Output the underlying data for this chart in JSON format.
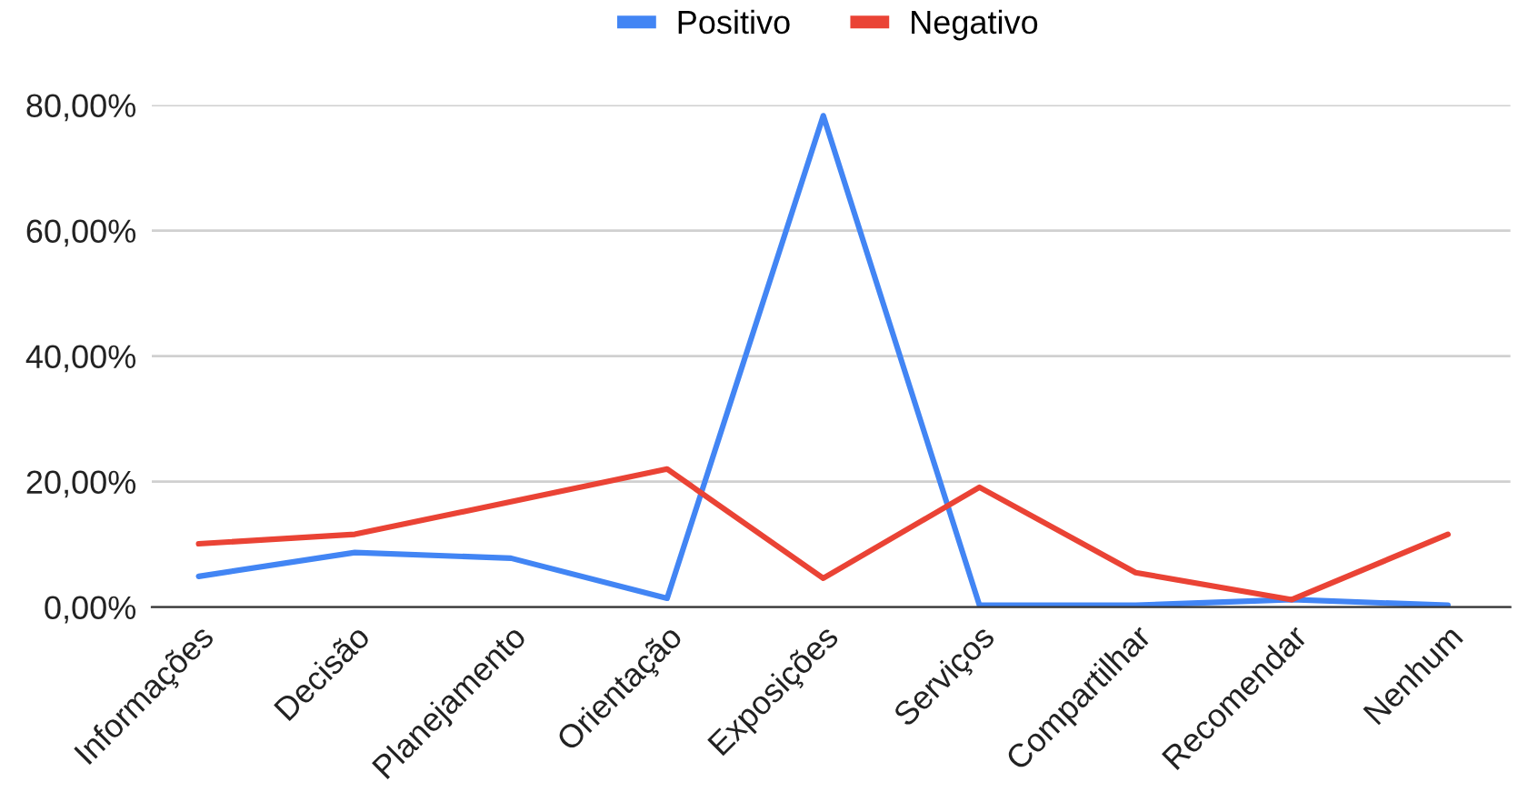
{
  "chart_data": {
    "type": "line",
    "categories": [
      "Informações",
      "Decisão",
      "Planejamento",
      "Orientação",
      "Exposições",
      "Serviços",
      "Compartilhar",
      "Recomendar",
      "Nenhum"
    ],
    "series": [
      {
        "name": "Positivo",
        "color": "#4285f4",
        "values": [
          4.9,
          8.7,
          7.8,
          1.4,
          78.3,
          0.3,
          0.3,
          1.2,
          0.3
        ]
      },
      {
        "name": "Negativo",
        "color": "#ea4335",
        "values": [
          10.1,
          11.6,
          16.8,
          22.0,
          4.6,
          19.1,
          5.5,
          1.2,
          11.6
        ]
      }
    ],
    "ylim": [
      0,
      80
    ],
    "yticks": [
      {
        "value": 0,
        "label": "0,00%"
      },
      {
        "value": 20,
        "label": "20,00%"
      },
      {
        "value": 40,
        "label": "40,00%"
      },
      {
        "value": 60,
        "label": "60,00%"
      },
      {
        "value": 80,
        "label": "80,00%"
      }
    ],
    "grid": "y",
    "legend": "top",
    "marker": "none",
    "line_style": "solid"
  }
}
